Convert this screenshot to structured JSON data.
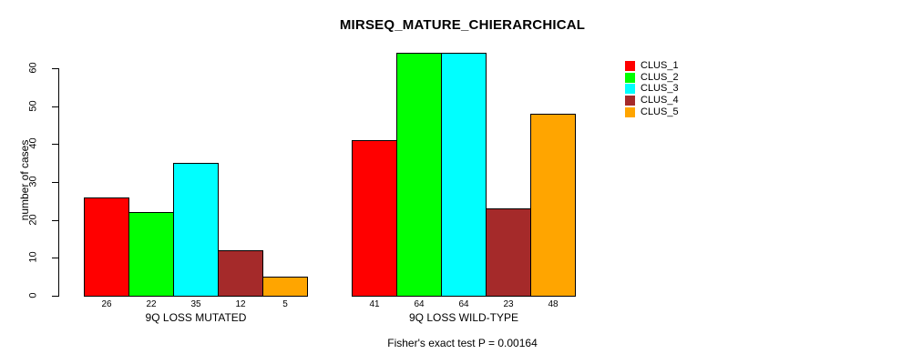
{
  "chart_data": {
    "type": "bar",
    "title": "MIRSEQ_MATURE_CHIERARCHICAL",
    "ylabel": "number of cases",
    "footnote": "Fisher's exact test P = 0.00164",
    "yticks": [
      0,
      10,
      20,
      30,
      40,
      50,
      60
    ],
    "ylim": [
      0,
      64
    ],
    "grid": false,
    "legend_position": "top-right",
    "clusters": [
      {
        "name": "CLUS_1",
        "color": "#FF0000"
      },
      {
        "name": "CLUS_2",
        "color": "#00FF00"
      },
      {
        "name": "CLUS_3",
        "color": "#00FFFF"
      },
      {
        "name": "CLUS_4",
        "color": "#A52A2A"
      },
      {
        "name": "CLUS_5",
        "color": "#FFA500"
      }
    ],
    "groups": [
      {
        "label": "9Q LOSS MUTATED",
        "values": [
          26,
          22,
          35,
          12,
          5
        ]
      },
      {
        "label": "9Q LOSS WILD-TYPE",
        "values": [
          41,
          64,
          64,
          23,
          48
        ]
      }
    ],
    "colors": {
      "axis": "#000000",
      "bar_border": "#000000",
      "background": "#FFFFFF",
      "text": "#000000"
    }
  }
}
